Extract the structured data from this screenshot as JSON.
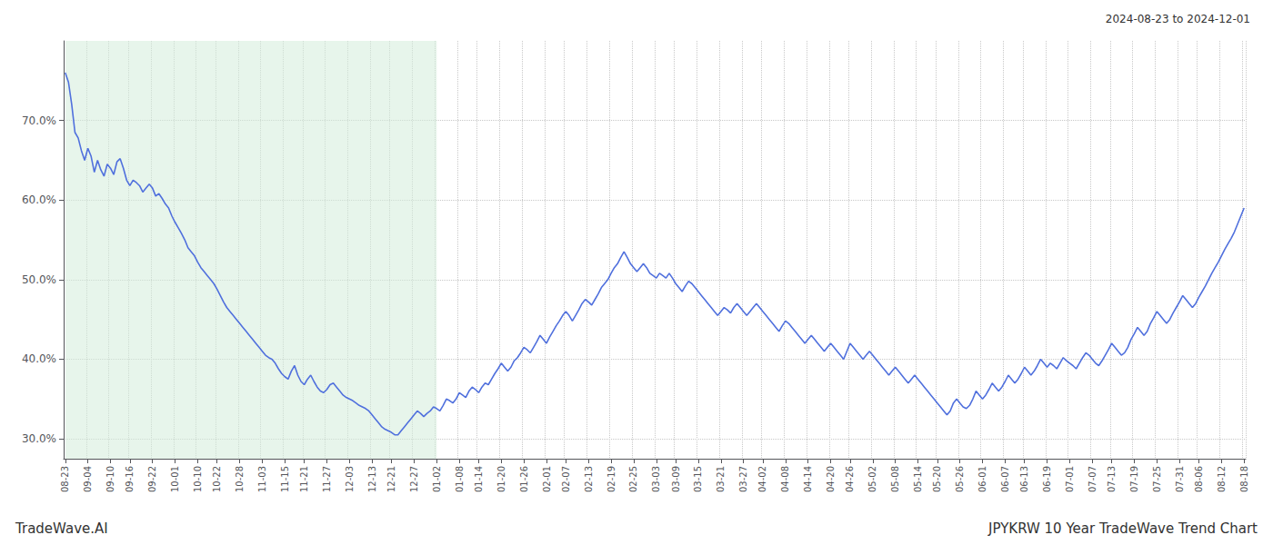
{
  "chart_data": {
    "type": "line",
    "title": "JPYKRW 10 Year TradeWave Trend Chart",
    "subtitle": "2024-08-23 to 2024-12-01",
    "annotations": [
      "TradeWave.AI"
    ],
    "grid": true,
    "ylim": [
      27.5,
      80.0
    ],
    "yticks": [
      {
        "value": 30.0,
        "label": "30.0%"
      },
      {
        "value": 40.0,
        "label": "40.0%"
      },
      {
        "value": 50.0,
        "label": "50.0%"
      },
      {
        "value": 60.0,
        "label": "60.0%"
      },
      {
        "value": 70.0,
        "label": "70.0%"
      }
    ],
    "shaded_span": {
      "from": "08-23",
      "to": "01-02",
      "color": "#d4edda"
    },
    "categories": [
      "08-23",
      null,
      null,
      null,
      null,
      null,
      null,
      "09-04",
      null,
      null,
      null,
      null,
      null,
      null,
      "09-10",
      null,
      null,
      null,
      null,
      null,
      "09-16",
      null,
      null,
      null,
      null,
      null,
      null,
      "09-22",
      null,
      null,
      null,
      null,
      null,
      null,
      "10-01",
      null,
      null,
      null,
      null,
      null,
      null,
      "10-10",
      null,
      null,
      null,
      null,
      null,
      "10-22",
      null,
      null,
      null,
      null,
      null,
      null,
      "10-28",
      null,
      null,
      null,
      null,
      null,
      null,
      "11-03",
      null,
      null,
      null,
      null,
      null,
      null,
      "11-15",
      null,
      null,
      null,
      null,
      null,
      "11-21",
      null,
      null,
      null,
      null,
      null,
      null,
      "11-27",
      null,
      null,
      null,
      null,
      null,
      null,
      "12-03",
      null,
      null,
      null,
      null,
      null,
      null,
      "12-13",
      null,
      null,
      null,
      null,
      null,
      "12-21",
      null,
      null,
      null,
      null,
      null,
      null,
      "12-27",
      null,
      null,
      null,
      null,
      null,
      null,
      "01-02",
      null,
      null,
      null,
      null,
      null,
      null,
      "01-08",
      null,
      null,
      null,
      null,
      null,
      "01-14",
      null,
      null,
      null,
      null,
      null,
      null,
      "01-20",
      null,
      null,
      null,
      null,
      null,
      null,
      "01-26",
      null,
      null,
      null,
      null,
      null,
      null,
      "02-01",
      null,
      null,
      null,
      null,
      null,
      "02-07",
      null,
      null,
      null,
      null,
      null,
      null,
      "02-13",
      null,
      null,
      null,
      null,
      null,
      null,
      "02-19",
      null,
      null,
      null,
      null,
      null,
      null,
      "02-25",
      null,
      null,
      null,
      null,
      null,
      null,
      "03-03",
      null,
      null,
      null,
      null,
      null,
      "03-09",
      null,
      null,
      null,
      null,
      null,
      null,
      "03-15",
      null,
      null,
      null,
      null,
      null,
      null,
      "03-21",
      null,
      null,
      null,
      null,
      null,
      null,
      "03-27",
      null,
      null,
      null,
      null,
      null,
      "04-02",
      null,
      null,
      null,
      null,
      null,
      null,
      "04-08",
      null,
      null,
      null,
      null,
      null,
      null,
      "04-14",
      null,
      null,
      null,
      null,
      null,
      null,
      "04-20",
      null,
      null,
      null,
      null,
      null,
      "04-26",
      null,
      null,
      null,
      null,
      null,
      null,
      "05-02",
      null,
      null,
      null,
      null,
      null,
      null,
      "05-08",
      null,
      null,
      null,
      null,
      null,
      null,
      "05-14",
      null,
      null,
      null,
      null,
      null,
      "05-20",
      null,
      null,
      null,
      null,
      null,
      null,
      "05-26",
      null,
      null,
      null,
      null,
      null,
      null,
      "06-01",
      null,
      null,
      null,
      null,
      null,
      null,
      "06-07",
      null,
      null,
      null,
      null,
      null,
      "06-13",
      null,
      null,
      null,
      null,
      null,
      null,
      "06-19",
      null,
      null,
      null,
      null,
      null,
      null,
      "07-01",
      null,
      null,
      null,
      null,
      null,
      null,
      "07-07",
      null,
      null,
      null,
      null,
      null,
      "07-13",
      null,
      null,
      null,
      null,
      null,
      null,
      "07-19",
      null,
      null,
      null,
      null,
      null,
      null,
      "07-25",
      null,
      null,
      null,
      null,
      null,
      null,
      "07-31",
      null,
      null,
      null,
      null,
      null,
      "08-06",
      null,
      null,
      null,
      null,
      null,
      null,
      "08-12",
      null,
      null,
      null,
      null,
      null,
      null,
      "08-18"
    ],
    "values": [
      76.0,
      74.8,
      72.0,
      68.5,
      67.8,
      66.2,
      65.0,
      66.5,
      65.5,
      63.5,
      65.0,
      63.8,
      63.0,
      64.5,
      64.0,
      63.2,
      64.8,
      65.2,
      64.0,
      62.5,
      61.8,
      62.5,
      62.2,
      61.8,
      61.0,
      61.5,
      62.0,
      61.5,
      60.5,
      60.8,
      60.2,
      59.5,
      59.0,
      58.0,
      57.2,
      56.5,
      55.8,
      55.0,
      54.0,
      53.5,
      53.0,
      52.2,
      51.5,
      51.0,
      50.5,
      50.0,
      49.5,
      48.8,
      48.0,
      47.2,
      46.5,
      46.0,
      45.5,
      45.0,
      44.5,
      44.0,
      43.5,
      43.0,
      42.5,
      42.0,
      41.5,
      41.0,
      40.5,
      40.2,
      40.0,
      39.5,
      38.8,
      38.2,
      37.8,
      37.5,
      38.5,
      39.2,
      38.0,
      37.2,
      36.8,
      37.5,
      38.0,
      37.2,
      36.5,
      36.0,
      35.8,
      36.2,
      36.8,
      37.0,
      36.5,
      36.0,
      35.5,
      35.2,
      35.0,
      34.8,
      34.5,
      34.2,
      34.0,
      33.8,
      33.5,
      33.0,
      32.5,
      32.0,
      31.5,
      31.2,
      31.0,
      30.8,
      30.5,
      30.5,
      31.0,
      31.5,
      32.0,
      32.5,
      33.0,
      33.5,
      33.2,
      32.8,
      33.2,
      33.5,
      34.0,
      33.8,
      33.5,
      34.2,
      35.0,
      34.8,
      34.5,
      35.0,
      35.8,
      35.5,
      35.2,
      36.0,
      36.5,
      36.2,
      35.8,
      36.5,
      37.0,
      36.8,
      37.5,
      38.2,
      38.8,
      39.5,
      39.0,
      38.5,
      39.0,
      39.8,
      40.2,
      40.8,
      41.5,
      41.2,
      40.8,
      41.5,
      42.2,
      43.0,
      42.5,
      42.0,
      42.8,
      43.5,
      44.2,
      44.8,
      45.5,
      46.0,
      45.5,
      44.8,
      45.5,
      46.2,
      47.0,
      47.5,
      47.2,
      46.8,
      47.5,
      48.2,
      49.0,
      49.5,
      50.0,
      50.8,
      51.5,
      52.0,
      52.8,
      53.5,
      52.8,
      52.0,
      51.5,
      51.0,
      51.5,
      52.0,
      51.5,
      50.8,
      50.5,
      50.2,
      50.8,
      50.5,
      50.2,
      50.8,
      50.2,
      49.5,
      49.0,
      48.5,
      49.2,
      49.8,
      49.5,
      49.0,
      48.5,
      48.0,
      47.5,
      47.0,
      46.5,
      46.0,
      45.5,
      46.0,
      46.5,
      46.2,
      45.8,
      46.5,
      47.0,
      46.5,
      46.0,
      45.5,
      46.0,
      46.5,
      47.0,
      46.5,
      46.0,
      45.5,
      45.0,
      44.5,
      44.0,
      43.5,
      44.2,
      44.8,
      44.5,
      44.0,
      43.5,
      43.0,
      42.5,
      42.0,
      42.5,
      43.0,
      42.5,
      42.0,
      41.5,
      41.0,
      41.5,
      42.0,
      41.5,
      41.0,
      40.5,
      40.0,
      41.0,
      42.0,
      41.5,
      41.0,
      40.5,
      40.0,
      40.5,
      41.0,
      40.5,
      40.0,
      39.5,
      39.0,
      38.5,
      38.0,
      38.5,
      39.0,
      38.5,
      38.0,
      37.5,
      37.0,
      37.5,
      38.0,
      37.5,
      37.0,
      36.5,
      36.0,
      35.5,
      35.0,
      34.5,
      34.0,
      33.5,
      33.0,
      33.5,
      34.5,
      35.0,
      34.5,
      34.0,
      33.8,
      34.2,
      35.0,
      36.0,
      35.5,
      35.0,
      35.5,
      36.2,
      37.0,
      36.5,
      36.0,
      36.5,
      37.2,
      38.0,
      37.5,
      37.0,
      37.5,
      38.2,
      39.0,
      38.5,
      38.0,
      38.5,
      39.2,
      40.0,
      39.5,
      39.0,
      39.5,
      39.2,
      38.8,
      39.5,
      40.2,
      39.8,
      39.5,
      39.2,
      38.8,
      39.5,
      40.2,
      40.8,
      40.5,
      40.0,
      39.5,
      39.2,
      39.8,
      40.5,
      41.2,
      42.0,
      41.5,
      41.0,
      40.5,
      40.8,
      41.5,
      42.5,
      43.2,
      44.0,
      43.5,
      43.0,
      43.5,
      44.5,
      45.2,
      46.0,
      45.5,
      45.0,
      44.5,
      45.0,
      45.8,
      46.5,
      47.2,
      48.0,
      47.5,
      47.0,
      46.5,
      47.0,
      47.8,
      48.5,
      49.2,
      50.0,
      50.8,
      51.5,
      52.2,
      53.0,
      53.8,
      54.5,
      55.2,
      56.0,
      57.0,
      58.0,
      59.0
    ]
  }
}
